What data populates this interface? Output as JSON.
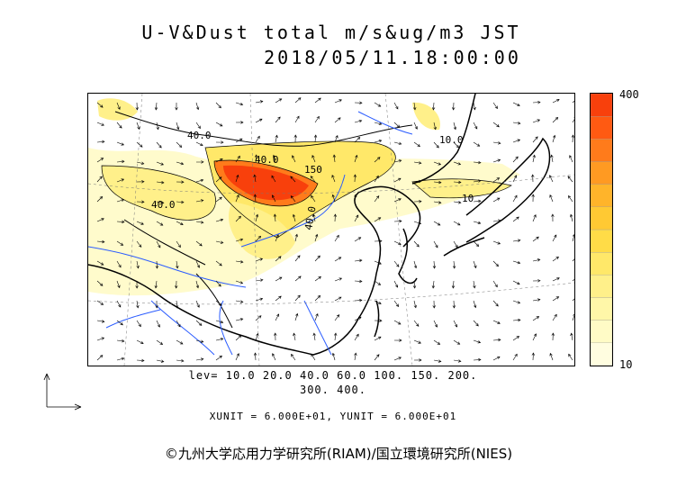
{
  "header": {
    "title": "U-V&Dust total m/s&ug/m3 JST",
    "datetime": "2018/05/11.18:00:00"
  },
  "colorbar": {
    "max_label": "400",
    "min_label": "10",
    "colors": [
      "#fffde0",
      "#fffbc6",
      "#fff7a8",
      "#fff08a",
      "#ffe869",
      "#ffdc47",
      "#ffc933",
      "#ffb42a",
      "#ff9a22",
      "#ff7b1b",
      "#ff5a12",
      "#f8400c"
    ]
  },
  "levels": {
    "line1": "lev= 10.0 20.0 40.0 60.0 100. 150. 200.",
    "line2": "300. 400."
  },
  "units": "XUNIT = 6.000E+01, YUNIT = 6.000E+01",
  "copyright": "©九州大学応用力学研究所(RIAM)/国立環境研究所(NIES)",
  "contour_labels": [
    "40.0",
    "150",
    "40.0",
    "40.0",
    "10.0",
    "40.0",
    "10"
  ]
}
